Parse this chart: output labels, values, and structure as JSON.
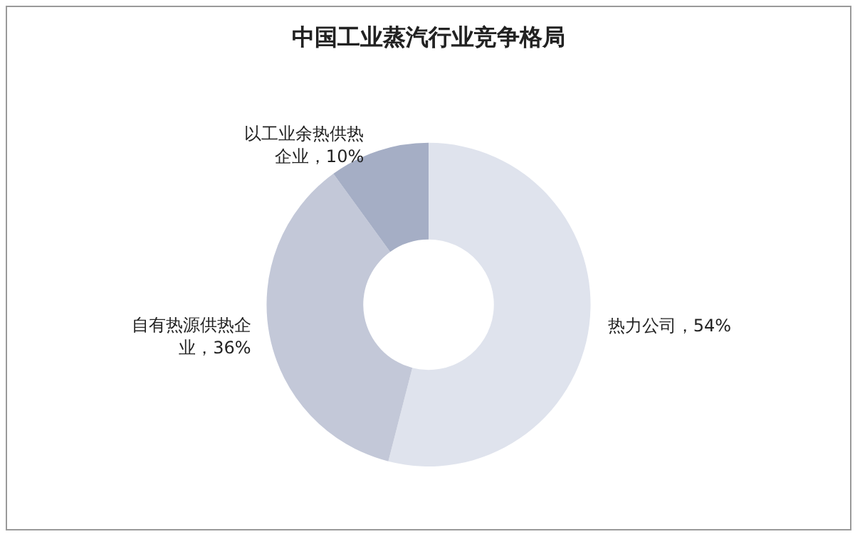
{
  "chart_data": {
    "type": "donut",
    "title": "中国工业蒸汽行业竞争格局",
    "categories": [
      "热力公司",
      "自有热源供热企业",
      "以工业余热供热企业"
    ],
    "values": [
      54,
      36,
      10
    ],
    "value_labels": [
      "54%",
      "36%",
      "10%"
    ],
    "colors": [
      "#dfe3ed",
      "#c3c8d8",
      "#a5aec5"
    ],
    "legend": false
  }
}
